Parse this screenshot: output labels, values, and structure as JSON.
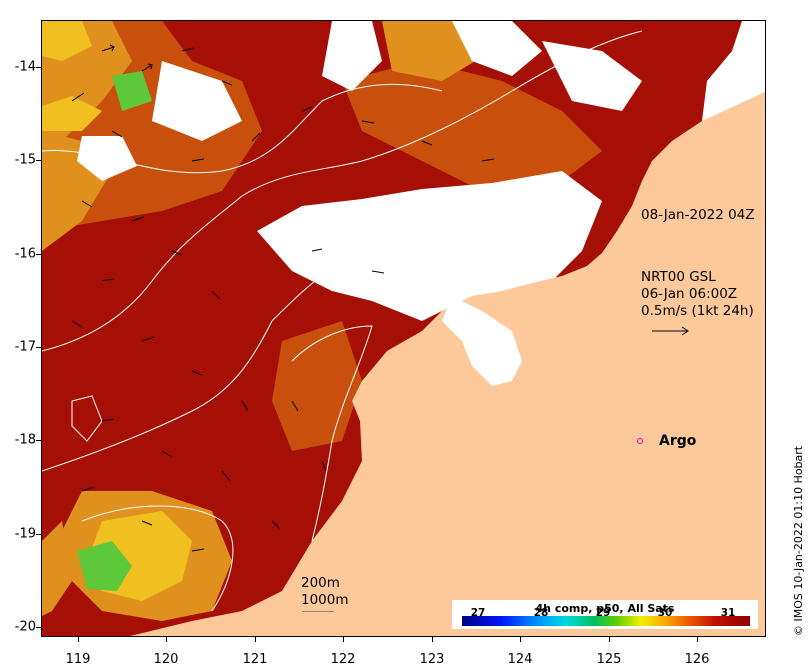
{
  "map": {
    "lon_ticks": [
      "119",
      "120",
      "121",
      "122",
      "123",
      "124",
      "125",
      "126"
    ],
    "lat_ticks": [
      "-14",
      "-15",
      "-16",
      "-17",
      "-18",
      "-19",
      "-20"
    ],
    "sst_date": "08-Jan-2022 04Z",
    "current_info": {
      "line1": "NRT00 GSL",
      "line2": "06-Jan 06:00Z",
      "line3": "0.5m/s (1kt 24h)"
    },
    "argo_label": "Argo",
    "bathymetry": {
      "label_200": "200m",
      "label_1000": "1000m"
    },
    "credit": "© IMOS 10-Jan-2022 01:10 Hobart",
    "colors": {
      "land": "#fdc99a",
      "sst_hot": "#a50f05",
      "sst_warm": "#c8500c",
      "sst_mid": "#e0901c",
      "sst_cool": "#f0c020",
      "sst_green": "#5cc83a",
      "argo_marker": "#e000e0"
    }
  },
  "colorbar": {
    "title": "4h comp, p50, All Sats",
    "ticks": [
      "27",
      "28",
      "29",
      "30",
      "31"
    ]
  }
}
